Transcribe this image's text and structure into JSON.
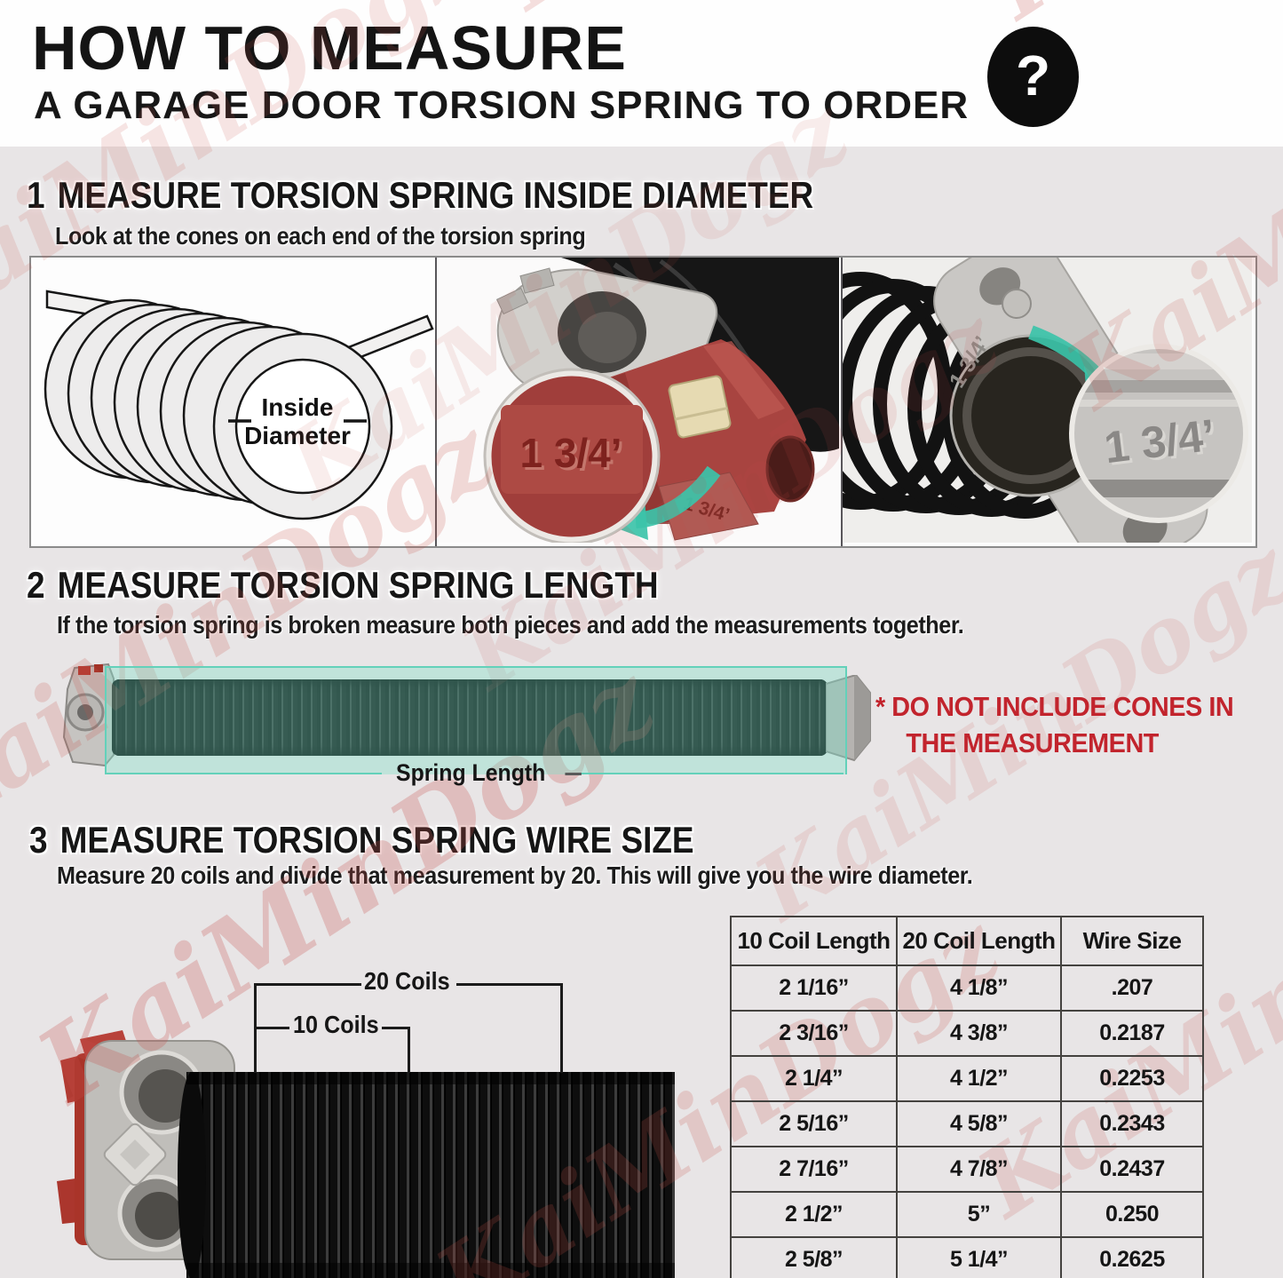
{
  "watermark": {
    "text": "KaiMinDogz"
  },
  "header": {
    "title": "HOW TO MEASURE",
    "subtitle": "A GARAGE DOOR TORSION SPRING TO ORDER",
    "help_icon_glyph": "?"
  },
  "section1": {
    "number": "1",
    "heading": "MEASURE TORSION SPRING INSIDE DIAMETER",
    "subtext": "Look at the cones on each end of the torsion spring",
    "inside_label_line1": "Inside",
    "inside_label_line2": "Diameter",
    "cone_marking": "1 3/4’",
    "flange_marking": "1 3/4’"
  },
  "section2": {
    "number": "2",
    "heading": "MEASURE TORSION SPRING LENGTH",
    "subtext": "If the torsion spring is broken measure both pieces and add the measurements together.",
    "spring_label": "Spring Length",
    "warning_line1": "* DO NOT INCLUDE CONES IN",
    "warning_line2": "THE MEASUREMENT"
  },
  "section3": {
    "number": "3",
    "heading": "MEASURE TORSION SPRING WIRE SIZE",
    "subtext": "Measure 20 coils and divide that measurement by 20. This will give you the wire diameter.",
    "bracket_label_20": "20 Coils",
    "bracket_label_10": "10 Coils"
  },
  "table": {
    "headers": [
      "10 Coil Length",
      "20 Coil Length",
      "Wire Size"
    ],
    "rows": [
      [
        "2 1/16”",
        "4 1/8”",
        ".207"
      ],
      [
        "2 3/16”",
        "4 3/8”",
        "0.2187"
      ],
      [
        "2 1/4”",
        "4 1/2”",
        "0.2253"
      ],
      [
        "2 5/16”",
        "4 5/8”",
        "0.2343"
      ],
      [
        "2 7/16”",
        "4 7/8”",
        "0.2437"
      ],
      [
        "2 1/2”",
        "5”",
        "0.250"
      ],
      [
        "2 5/8”",
        "5 1/4”",
        "0.2625"
      ]
    ]
  },
  "colors": {
    "page_bg": "#e8e5e6",
    "ink": "#161616",
    "warning_red": "#c2242d",
    "accent_teal": "#3cc3a9",
    "watermark_red": "#c64e48"
  }
}
